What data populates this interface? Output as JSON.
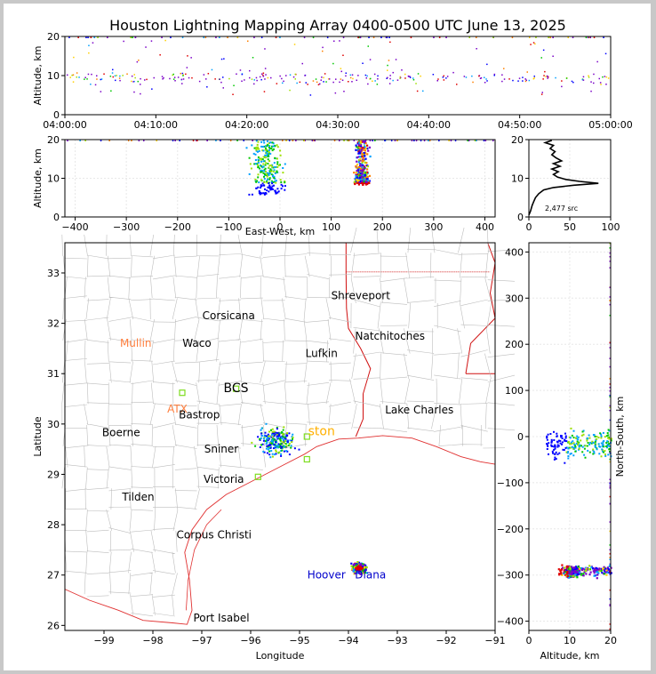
{
  "title": "Houston Lightning Mapping Array 0400-0500 UTC June 13, 2025",
  "colors": {
    "land_border": "#bdbdbd",
    "coast": "#e03030",
    "state": "#d01010",
    "grid": "#e8e8e8"
  },
  "chart_data": [
    {
      "type": "scatter",
      "name": "altitude-time",
      "ylabel": "Altitude, km",
      "xlim": [
        "04:00:00",
        "05:00:00"
      ],
      "ylim": [
        0,
        20
      ],
      "x_ticks": [
        "04:00:00",
        "04:10:00",
        "04:20:00",
        "04:30:00",
        "04:40:00",
        "04:50:00",
        "05:00:00"
      ],
      "y_ticks": [
        "0",
        "10",
        "20"
      ]
    },
    {
      "type": "scatter",
      "name": "altitude-east-west",
      "xlabel": "East-West, km",
      "ylabel": "Altitude, km",
      "xlim": [
        -420,
        420
      ],
      "ylim": [
        0,
        20
      ],
      "x_ticks": [
        "−400",
        "−300",
        "−200",
        "−100",
        "0",
        "100",
        "200",
        "300",
        "400"
      ],
      "y_ticks": [
        "0",
        "10",
        "20"
      ],
      "clusters": [
        {
          "x_center": -25,
          "x_spread": 45,
          "y_min": 6,
          "y_max": 20
        },
        {
          "x_center": 158,
          "x_spread": 18,
          "y_min": 8,
          "y_max": 20
        }
      ]
    },
    {
      "type": "line",
      "name": "altitude-histogram",
      "xlim": [
        0,
        100
      ],
      "ylim": [
        0,
        20
      ],
      "x_ticks": [
        "0",
        "50",
        "100"
      ],
      "y_ticks": [
        "0",
        "10",
        "20"
      ],
      "annotation": "2,477 src",
      "profile": [
        [
          0,
          0.5
        ],
        [
          2,
          1.5
        ],
        [
          4,
          3
        ],
        [
          6,
          4
        ],
        [
          8,
          5
        ],
        [
          12,
          6
        ],
        [
          18,
          7
        ],
        [
          30,
          7.6
        ],
        [
          55,
          8.2
        ],
        [
          85,
          8.7
        ],
        [
          62,
          9.2
        ],
        [
          45,
          9.7
        ],
        [
          35,
          10.3
        ],
        [
          30,
          11
        ],
        [
          36,
          11.7
        ],
        [
          28,
          12.4
        ],
        [
          38,
          13.1
        ],
        [
          30,
          13.8
        ],
        [
          40,
          14.5
        ],
        [
          33,
          15.3
        ],
        [
          28,
          16.1
        ],
        [
          32,
          16.9
        ],
        [
          26,
          17.7
        ],
        [
          30,
          18.5
        ],
        [
          20,
          19.2
        ],
        [
          28,
          19.8
        ]
      ]
    },
    {
      "type": "scatter",
      "name": "plan-view-map",
      "xlabel": "Longitude",
      "ylabel": "Latitude",
      "xlim": [
        -99.8,
        -91.0
      ],
      "ylim": [
        25.9,
        33.6
      ],
      "x_ticks": [
        "−99",
        "−98",
        "−97",
        "−96",
        "−95",
        "−94",
        "−93",
        "−92",
        "−91"
      ],
      "y_ticks": [
        "26",
        "27",
        "28",
        "29",
        "30",
        "31",
        "32",
        "33"
      ],
      "cities": [
        {
          "name": "Shreveport",
          "lon": -93.75,
          "lat": 32.55,
          "color": "#000000"
        },
        {
          "name": "Corsicana",
          "lon": -96.45,
          "lat": 32.15,
          "color": "#000000"
        },
        {
          "name": "Natchitoches",
          "lon": -93.15,
          "lat": 31.75,
          "color": "#000000"
        },
        {
          "name": "Mullin",
          "lon": -98.35,
          "lat": 31.6,
          "color": "#ff8040"
        },
        {
          "name": "Waco",
          "lon": -97.1,
          "lat": 31.6,
          "color": "#000000"
        },
        {
          "name": "Lufkin",
          "lon": -94.55,
          "lat": 31.4,
          "color": "#000000"
        },
        {
          "name": "BCS",
          "lon": -96.3,
          "lat": 30.7,
          "color": "#000000"
        },
        {
          "name": "ATX",
          "lon": -97.5,
          "lat": 30.3,
          "color": "#ff8040"
        },
        {
          "name": "Bastrop",
          "lon": -97.05,
          "lat": 30.18,
          "color": "#000000"
        },
        {
          "name": "Lake Charles",
          "lon": -92.55,
          "lat": 30.28,
          "color": "#000000"
        },
        {
          "name": "Boerne",
          "lon": -98.65,
          "lat": 29.83,
          "color": "#000000"
        },
        {
          "name": "ston",
          "lon": -94.55,
          "lat": 29.85,
          "color": "#ffb000"
        },
        {
          "name": "Sniner",
          "lon": -96.6,
          "lat": 29.5,
          "color": "#000000"
        },
        {
          "name": "Victoria",
          "lon": -96.55,
          "lat": 28.9,
          "color": "#000000"
        },
        {
          "name": "Tilden",
          "lon": -98.3,
          "lat": 28.55,
          "color": "#000000"
        },
        {
          "name": "Corpus Christi",
          "lon": -96.75,
          "lat": 27.8,
          "color": "#000000"
        },
        {
          "name": "Hoover",
          "lon": -94.45,
          "lat": 27.0,
          "color": "#0000cc"
        },
        {
          "name": "Diana",
          "lon": -93.55,
          "lat": 27.0,
          "color": "#0000cc"
        },
        {
          "name": "Port Isabel",
          "lon": -96.6,
          "lat": 26.15,
          "color": "#000000"
        }
      ],
      "stations": [
        {
          "lon": -97.4,
          "lat": 30.62
        },
        {
          "lon": -96.3,
          "lat": 30.7
        },
        {
          "lon": -94.85,
          "lat": 29.75
        },
        {
          "lon": -94.85,
          "lat": 29.3
        },
        {
          "lon": -95.85,
          "lat": 28.95
        }
      ],
      "clusters": [
        {
          "lon": -95.5,
          "lat": 29.68,
          "lon_spread": 0.5,
          "lat_spread": 0.38
        },
        {
          "lon": -93.8,
          "lat": 27.15,
          "lon_spread": 0.2,
          "lat_spread": 0.14
        }
      ]
    },
    {
      "type": "scatter",
      "name": "north-south-altitude",
      "xlabel": "Altitude, km",
      "ylabel": "North-South, km",
      "xlim": [
        0,
        20
      ],
      "ylim": [
        -420,
        420
      ],
      "x_ticks": [
        "0",
        "10",
        "20"
      ],
      "y_ticks": [
        "−400",
        "−300",
        "−200",
        "−100",
        "0",
        "100",
        "200",
        "300",
        "400"
      ]
    }
  ]
}
